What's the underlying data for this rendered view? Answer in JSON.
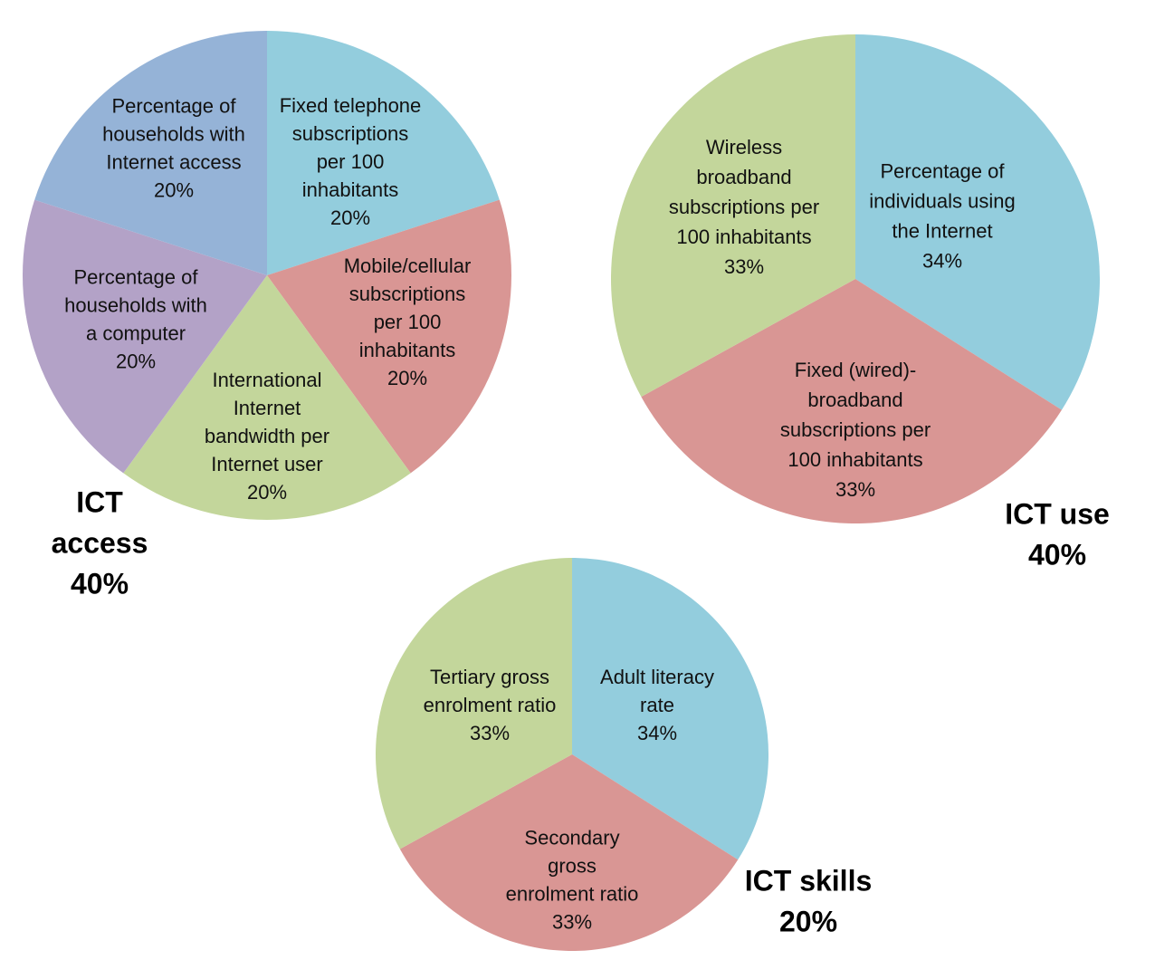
{
  "chart_data": [
    {
      "type": "pie",
      "title": "ICT access",
      "weight": {
        "value": 40,
        "label": "40%"
      },
      "categories": [
        "Fixed telephone subscriptions per 100 inhabitants",
        "Mobile/cellular subscriptions per 100 inhabitants",
        "International Internet bandwidth per Internet user",
        "Percentage of households with a computer",
        "Percentage of households with Internet access"
      ],
      "values": [
        20,
        20,
        20,
        20,
        20
      ],
      "value_labels": [
        "20%",
        "20%",
        "20%",
        "20%",
        "20%"
      ],
      "colors": [
        "#93cddd",
        "#d99694",
        "#c3d69b",
        "#b3a2c7",
        "#95b3d7"
      ]
    },
    {
      "type": "pie",
      "title": "ICT use",
      "weight": {
        "value": 40,
        "label": "40%"
      },
      "categories": [
        "Percentage of individuals using the Internet",
        "Fixed (wired)-broadband subscriptions per 100 inhabitants",
        "Wireless broadband subscriptions per 100 inhabitants"
      ],
      "values": [
        34,
        33,
        33
      ],
      "value_labels": [
        "34%",
        "33%",
        "33%"
      ],
      "colors": [
        "#93cddd",
        "#d99694",
        "#c3d69b"
      ]
    },
    {
      "type": "pie",
      "title": "ICT skills",
      "weight": {
        "value": 20,
        "label": "20%"
      },
      "categories": [
        "Adult literacy rate",
        "Secondary gross enrolment ratio",
        "Tertiary gross enrolment ratio"
      ],
      "values": [
        34,
        33,
        33
      ],
      "value_labels": [
        "34%",
        "33%",
        "33%"
      ],
      "colors": [
        "#93cddd",
        "#d99694",
        "#c3d69b"
      ]
    }
  ]
}
